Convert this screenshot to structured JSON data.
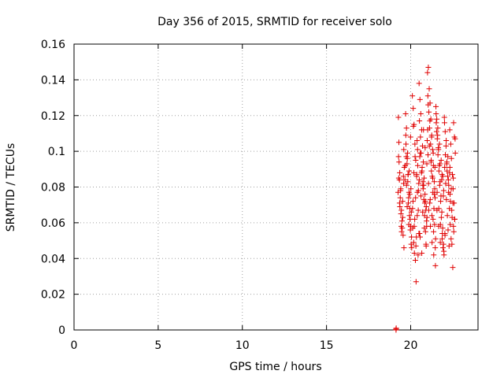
{
  "chart_data": {
    "type": "scatter",
    "title": "Day 356 of 2015, SRMTID for receiver solo",
    "xlabel": "GPS time / hours",
    "ylabel": "SRMTID / TECUs",
    "xlim": [
      0,
      24
    ],
    "ylim": [
      0,
      0.16
    ],
    "xticks": [
      "0",
      "5",
      "10",
      "15",
      "20"
    ],
    "yticks": [
      "0",
      "0.02",
      "0.04",
      "0.06",
      "0.08",
      "0.1",
      "0.12",
      "0.14",
      "0.16"
    ],
    "grid": true,
    "marker": "+",
    "color": "#e00000",
    "series": [
      {
        "x": [
          19.13,
          19.13,
          19.14,
          19.27,
          19.3,
          19.35,
          19.4,
          19.45,
          19.5,
          19.55,
          19.6,
          19.28,
          19.33,
          19.38,
          19.42,
          19.48,
          19.52,
          19.58,
          19.62,
          19.25,
          19.36,
          19.44,
          19.57,
          19.31,
          19.46,
          19.53,
          19.41,
          19.34,
          19.59,
          19.29,
          19.7,
          19.75,
          19.8,
          19.85,
          19.9,
          19.95,
          20.0,
          20.05,
          19.72,
          19.78,
          19.83,
          19.88,
          19.93,
          19.98,
          20.03,
          19.68,
          19.76,
          19.86,
          19.96,
          20.06,
          19.74,
          19.84,
          19.94,
          20.04,
          19.71,
          19.81,
          19.91,
          20.01,
          19.79,
          19.89,
          19.99,
          19.66,
          20.1,
          20.15,
          20.2,
          20.25,
          20.3,
          20.35,
          20.4,
          20.45,
          20.12,
          20.18,
          20.22,
          20.28,
          20.32,
          20.38,
          20.42,
          20.48,
          20.14,
          20.24,
          20.34,
          20.44,
          20.16,
          20.26,
          20.36,
          20.46,
          20.11,
          20.21,
          20.31,
          20.41,
          20.19,
          20.29,
          20.39,
          20.49,
          20.5,
          20.55,
          20.6,
          20.65,
          20.7,
          20.75,
          20.8,
          20.85,
          20.9,
          20.95,
          20.52,
          20.58,
          20.62,
          20.68,
          20.72,
          20.78,
          20.82,
          20.88,
          20.92,
          20.98,
          20.54,
          20.64,
          20.74,
          20.84,
          20.94,
          20.56,
          20.66,
          20.76,
          20.86,
          20.96,
          20.51,
          20.61,
          20.71,
          20.81,
          20.91,
          20.57,
          20.67,
          20.77,
          20.87,
          20.97,
          20.53,
          20.73,
          20.93,
          21.0,
          21.05,
          21.1,
          21.15,
          21.2,
          21.25,
          21.3,
          21.35,
          21.4,
          21.45,
          21.02,
          21.08,
          21.12,
          21.18,
          21.22,
          21.28,
          21.32,
          21.38,
          21.42,
          21.48,
          21.04,
          21.14,
          21.24,
          21.34,
          21.44,
          21.06,
          21.16,
          21.26,
          21.36,
          21.46,
          21.01,
          21.11,
          21.21,
          21.31,
          21.41,
          21.07,
          21.17,
          21.27,
          21.37,
          21.47,
          21.03,
          21.23,
          21.43,
          21.13,
          21.33,
          21.5,
          21.55,
          21.6,
          21.65,
          21.7,
          21.75,
          21.8,
          21.85,
          21.9,
          21.95,
          21.52,
          21.58,
          21.62,
          21.68,
          21.72,
          21.78,
          21.82,
          21.88,
          21.92,
          21.98,
          21.54,
          21.64,
          21.74,
          21.84,
          21.94,
          21.56,
          21.66,
          21.76,
          21.86,
          21.96,
          21.51,
          21.61,
          21.71,
          21.81,
          21.91,
          21.57,
          21.67,
          21.77,
          21.87,
          21.97,
          22.0,
          22.05,
          22.1,
          22.15,
          22.2,
          22.25,
          22.3,
          22.35,
          22.4,
          22.45,
          22.5,
          22.55,
          22.6,
          22.65,
          22.02,
          22.08,
          22.12,
          22.18,
          22.22,
          22.28,
          22.32,
          22.38,
          22.42,
          22.48,
          22.52,
          22.58,
          22.62,
          22.04,
          22.14,
          22.24,
          22.34,
          22.44,
          22.54,
          22.64,
          22.06,
          22.16,
          22.26,
          22.36,
          22.46,
          22.56,
          22.01,
          22.11,
          22.21,
          22.31,
          22.41,
          22.51,
          22.61,
          22.03,
          22.33,
          22.53
        ],
        "y": [
          0.0,
          0.0005,
          0.001,
          0.119,
          0.105,
          0.088,
          0.078,
          0.067,
          0.057,
          0.053,
          0.046,
          0.097,
          0.084,
          0.074,
          0.065,
          0.061,
          0.072,
          0.082,
          0.091,
          0.077,
          0.069,
          0.058,
          0.086,
          0.094,
          0.055,
          0.063,
          0.079,
          0.071,
          0.101,
          0.085,
          0.121,
          0.113,
          0.096,
          0.087,
          0.077,
          0.068,
          0.058,
          0.052,
          0.104,
          0.093,
          0.083,
          0.074,
          0.064,
          0.056,
          0.048,
          0.092,
          0.081,
          0.071,
          0.062,
          0.046,
          0.097,
          0.087,
          0.076,
          0.066,
          0.109,
          0.099,
          0.089,
          0.079,
          0.069,
          0.059,
          0.108,
          0.084,
          0.131,
          0.124,
          0.115,
          0.104,
          0.095,
          0.086,
          0.077,
          0.067,
          0.057,
          0.049,
          0.043,
          0.039,
          0.027,
          0.106,
          0.092,
          0.082,
          0.072,
          0.062,
          0.052,
          0.042,
          0.114,
          0.097,
          0.087,
          0.078,
          0.068,
          0.058,
          0.047,
          0.101,
          0.088,
          0.074,
          0.064,
          0.054,
          0.138,
          0.129,
          0.121,
          0.112,
          0.103,
          0.094,
          0.085,
          0.076,
          0.067,
          0.058,
          0.117,
          0.108,
          0.099,
          0.091,
          0.081,
          0.073,
          0.064,
          0.055,
          0.047,
          0.106,
          0.097,
          0.088,
          0.079,
          0.071,
          0.061,
          0.052,
          0.043,
          0.112,
          0.102,
          0.093,
          0.084,
          0.075,
          0.066,
          0.057,
          0.048,
          0.099,
          0.089,
          0.081,
          0.072,
          0.063,
          0.054,
          0.083,
          0.069,
          0.144,
          0.147,
          0.135,
          0.127,
          0.118,
          0.109,
          0.101,
          0.092,
          0.083,
          0.074,
          0.131,
          0.122,
          0.113,
          0.104,
          0.095,
          0.086,
          0.077,
          0.068,
          0.059,
          0.051,
          0.126,
          0.117,
          0.108,
          0.099,
          0.091,
          0.082,
          0.073,
          0.064,
          0.055,
          0.046,
          0.112,
          0.103,
          0.094,
          0.085,
          0.076,
          0.067,
          0.058,
          0.049,
          0.042,
          0.036,
          0.098,
          0.089,
          0.079,
          0.071,
          0.062,
          0.125,
          0.118,
          0.109,
          0.101,
          0.092,
          0.083,
          0.075,
          0.066,
          0.057,
          0.048,
          0.116,
          0.107,
          0.098,
          0.089,
          0.081,
          0.072,
          0.063,
          0.054,
          0.046,
          0.042,
          0.111,
          0.102,
          0.093,
          0.084,
          0.075,
          0.067,
          0.058,
          0.049,
          0.087,
          0.078,
          0.121,
          0.113,
          0.104,
          0.095,
          0.086,
          0.077,
          0.068,
          0.059,
          0.051,
          0.044,
          0.119,
          0.111,
          0.103,
          0.094,
          0.086,
          0.077,
          0.068,
          0.059,
          0.051,
          0.048,
          0.035,
          0.116,
          0.108,
          0.099,
          0.091,
          0.082,
          0.073,
          0.064,
          0.056,
          0.047,
          0.112,
          0.104,
          0.096,
          0.087,
          0.079,
          0.071,
          0.062,
          0.053,
          0.093,
          0.084,
          0.076,
          0.067,
          0.058,
          0.107,
          0.098,
          0.089,
          0.081,
          0.072,
          0.063,
          0.055,
          0.116,
          0.106,
          0.097,
          0.088,
          0.079,
          0.071,
          0.062,
          0.054,
          0.091,
          0.085
        ]
      }
    ]
  }
}
